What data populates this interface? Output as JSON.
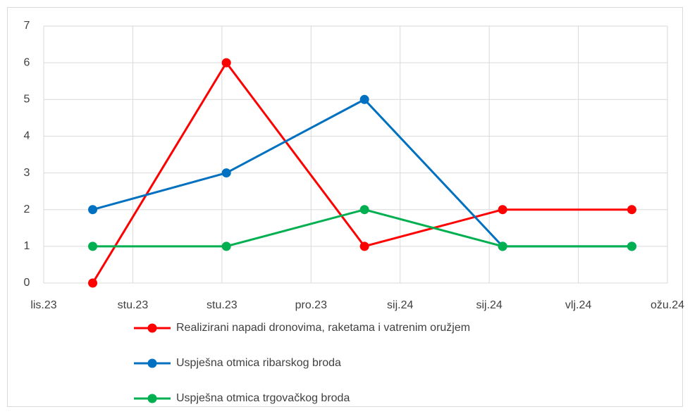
{
  "chart_data": {
    "type": "line",
    "xlim": [
      0,
      7
    ],
    "xticks": [
      {
        "value": 0,
        "label": "lis.23"
      },
      {
        "value": 1,
        "label": "stu.23"
      },
      {
        "value": 2,
        "label": "stu.23"
      },
      {
        "value": 3,
        "label": "pro.23"
      },
      {
        "value": 4,
        "label": "sij.24"
      },
      {
        "value": 5,
        "label": "sij.24"
      },
      {
        "value": 6,
        "label": "vlj.24"
      },
      {
        "value": 7,
        "label": "ožu.24"
      }
    ],
    "x": [
      0.55,
      2.05,
      3.6,
      5.15,
      6.6
    ],
    "ylim": [
      0,
      7
    ],
    "yticks": [
      0,
      1,
      2,
      3,
      4,
      5,
      6,
      7
    ],
    "grid": true,
    "legend": "bottom",
    "series": [
      {
        "name": "Realizirani napadi dronovima, raketama i vatrenim oružjem",
        "color": "#ff0000",
        "values": [
          0,
          6,
          1,
          2,
          2
        ]
      },
      {
        "name": "Uspješna otmica ribarskog broda",
        "color": "#0070c0",
        "values": [
          2,
          3,
          5,
          1,
          1
        ]
      },
      {
        "name": "Uspješna otmica trgovačkog broda",
        "color": "#00b050",
        "values": [
          1,
          1,
          2,
          1,
          1
        ]
      }
    ]
  }
}
